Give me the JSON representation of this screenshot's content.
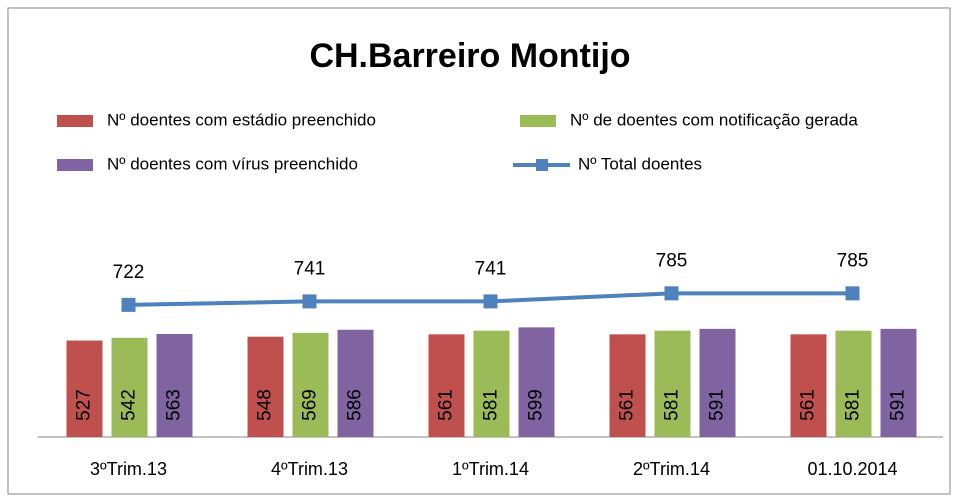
{
  "chart_data": {
    "type": "bar",
    "title": "CH.Barreiro Montijo",
    "categories": [
      "3ºTrim.13",
      "4ºTrim.13",
      "1ºTrim.14",
      "2ºTrim.14",
      "01.10.2014"
    ],
    "ylim": [
      0,
      2000
    ],
    "series": [
      {
        "name": "Nº  doentes com estádio preenchido",
        "color": "#c0504d",
        "values": [
          527,
          548,
          561,
          561,
          561
        ]
      },
      {
        "name": "Nº de doentes com notificação gerada",
        "color": "#9bbb59",
        "values": [
          542,
          569,
          581,
          581,
          581
        ]
      },
      {
        "name": "Nº  doentes com vírus preenchido",
        "color": "#8064a2",
        "values": [
          563,
          586,
          599,
          591,
          591
        ]
      },
      {
        "name": "Nº  Total doentes",
        "color": "#4f81bd",
        "type": "line",
        "values": [
          722,
          741,
          741,
          785,
          785
        ]
      }
    ]
  }
}
